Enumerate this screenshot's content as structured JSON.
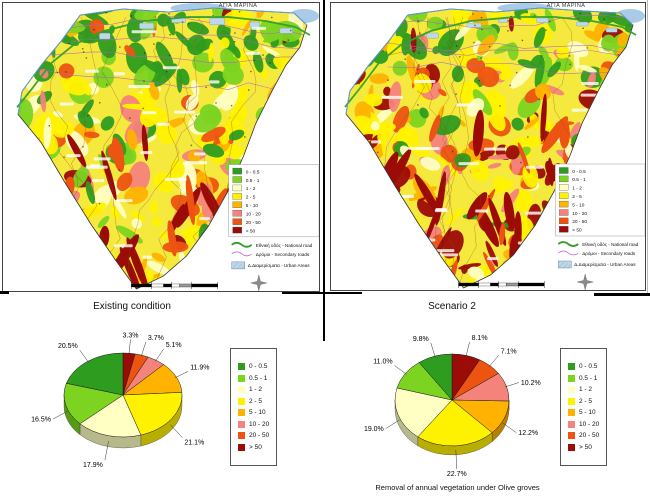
{
  "map_legend": {
    "classes": [
      {
        "label": "0 - 0.5",
        "color": "#2E9C1F"
      },
      {
        "label": "0.5 - 1",
        "color": "#7CD421"
      },
      {
        "label": "1 - 2",
        "color": "#FFFFC4"
      },
      {
        "label": "2 - 5",
        "color": "#FFF200"
      },
      {
        "label": "5 - 10",
        "color": "#FFB200"
      },
      {
        "label": "10 - 20",
        "color": "#F4837B"
      },
      {
        "label": "20 - 50",
        "color": "#ED5412"
      },
      {
        "label": "> 50",
        "color": "#9B0C06"
      }
    ],
    "lines": [
      {
        "label": "Εθνική οδός - National road",
        "color": "#33A02C"
      },
      {
        "label": "Δρόμοι - Secondary roads",
        "color": "#B05FC6"
      }
    ],
    "area": {
      "label": "Δ.Διαμερίσματα - Urban Areas",
      "color": "#BDD8EA"
    }
  },
  "maps": [
    {
      "name": "Existing condition erosion map",
      "top_label": "ΑΓΙΑ ΜΑΡΙΝΑ"
    },
    {
      "name": "Scenario 2 erosion map",
      "top_label": "ΑΓΙΑ ΜΑΡΙΝΑ"
    }
  ],
  "chart_data": [
    {
      "type": "pie",
      "style": "3d",
      "title": "Existing condition",
      "legend_position": "right",
      "categories": [
        "0 - 0.5",
        "0.5 - 1",
        "1 - 2",
        "2 - 5",
        "5 - 10",
        "10 - 20",
        "20 - 50",
        "> 50"
      ],
      "values": [
        20.5,
        16.5,
        17.9,
        21.1,
        11.9,
        5.1,
        3.7,
        3.3
      ],
      "labels": [
        "20.5%",
        "16.5%",
        "17.9%",
        "21.1%",
        "11.9%",
        "5.1%",
        "3.7%",
        "3.3%"
      ],
      "colors": [
        "#2E9C1F",
        "#7CD421",
        "#FFFFC4",
        "#FFF200",
        "#FFB200",
        "#F4837B",
        "#ED5412",
        "#9B0C06"
      ],
      "direction": "clockwise from 12 o'clock, last category first"
    },
    {
      "type": "pie",
      "style": "3d",
      "title": "Scenario 2",
      "caption": "Removal of annual vegetation under Olive groves",
      "legend_position": "right",
      "categories": [
        "0 - 0.5",
        "0.5 - 1",
        "1 - 2",
        "2 - 5",
        "5 - 10",
        "10 - 20",
        "20 - 50",
        "> 50"
      ],
      "values": [
        9.8,
        11.0,
        19.0,
        22.7,
        12.2,
        10.2,
        7.1,
        8.1
      ],
      "labels": [
        "9.8%",
        "11.0%",
        "19.0%",
        "22.7%",
        "12.2%",
        "10.2%",
        "7.1%",
        "8.1%"
      ],
      "colors": [
        "#2E9C1F",
        "#7CD421",
        "#FFFFC4",
        "#FFF200",
        "#FFB200",
        "#F4837B",
        "#ED5412",
        "#9B0C06"
      ],
      "direction": "clockwise from 12 o'clock, last category first"
    }
  ]
}
